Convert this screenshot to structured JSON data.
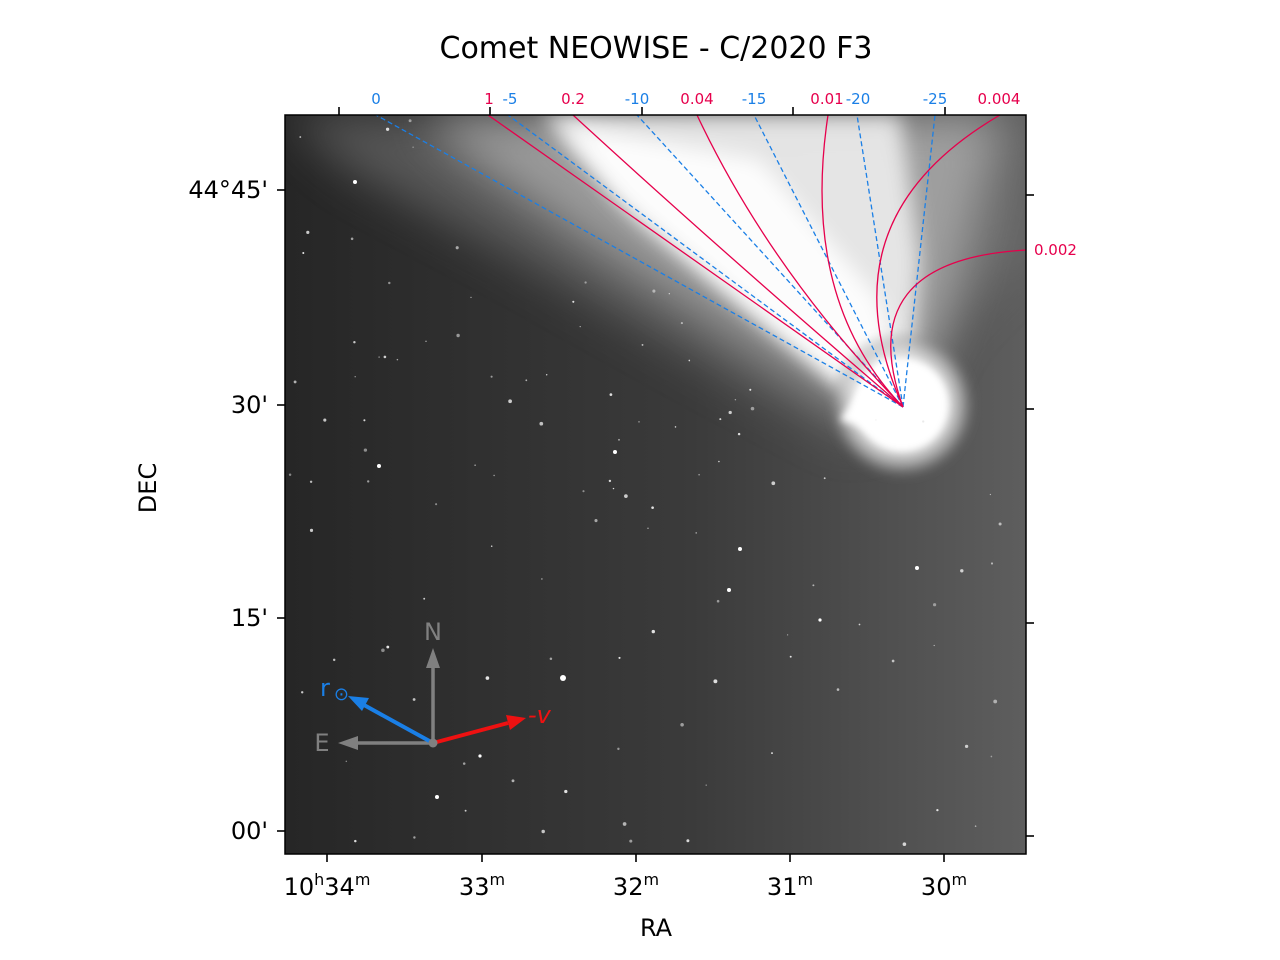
{
  "title": "Comet NEOWISE - C/2020 F3",
  "axes": {
    "xlabel": "RA",
    "ylabel": "DEC",
    "ra_ticks": [
      {
        "h": "10",
        "hsup": "h",
        "m": "34",
        "msup": "m"
      },
      {
        "m": "33",
        "msup": "m"
      },
      {
        "m": "32",
        "msup": "m"
      },
      {
        "m": "31",
        "msup": "m"
      },
      {
        "m": "30",
        "msup": "m"
      }
    ],
    "dec_ticks": [
      "44°45'",
      "30'",
      "15'",
      "00'"
    ]
  },
  "synchrones": {
    "color": "#1a7fe6",
    "style": "dashed",
    "labels": [
      "0",
      "-5",
      "-10",
      "-15",
      "-20",
      "-25"
    ]
  },
  "syndynes": {
    "color": "#e6004c",
    "style": "solid",
    "labels": [
      "1",
      "0.2",
      "0.04",
      "0.01",
      "0.004",
      "0.002"
    ]
  },
  "compass": {
    "north_label": "N",
    "east_label": "E",
    "sun_label": "r",
    "sun_symbol": "⊙",
    "velocity_label": "-v",
    "colors": {
      "compass": "#808080",
      "sun": "#1a7fe6",
      "velocity": "#ee1111"
    }
  }
}
